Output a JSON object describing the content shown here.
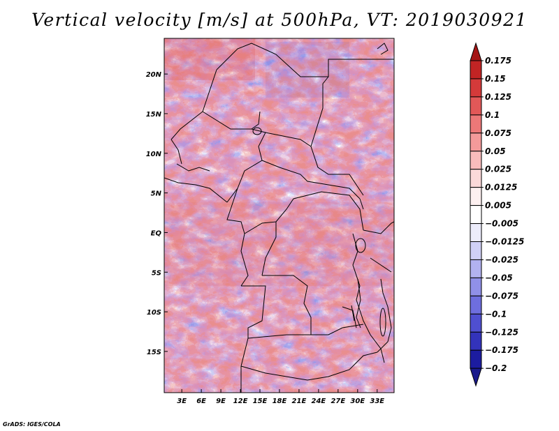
{
  "title": "Vertical velocity [m/s] at 500hPa, VT: 2019030921",
  "credit": "GrADS: IGES/COLA",
  "map": {
    "lat_labels": [
      "20N",
      "15N",
      "10N",
      "5N",
      "EQ",
      "5S",
      "10S",
      "15S"
    ],
    "lat_values": [
      20,
      15,
      10,
      5,
      0,
      -5,
      -10,
      -15
    ],
    "lon_labels": [
      "3E",
      "6E",
      "9E",
      "12E",
      "15E",
      "18E",
      "21E",
      "24E",
      "27E",
      "30E",
      "33E"
    ],
    "lon_values": [
      3,
      6,
      9,
      12,
      15,
      18,
      21,
      24,
      27,
      30,
      33
    ],
    "lon_range": [
      0.3,
      35.6
    ],
    "lat_range": [
      -20.2,
      24.5
    ]
  },
  "colorbar": {
    "labels": [
      "0.175",
      "0.15",
      "0.125",
      "0.1",
      "0.075",
      "0.05",
      "0.025",
      "0.0125",
      "0.005",
      "−0.005",
      "−0.0125",
      "−0.025",
      "−0.05",
      "−0.075",
      "−0.1",
      "−0.125",
      "−0.175",
      "−0.2"
    ],
    "colors": [
      "#a51515",
      "#c12424",
      "#d43a3a",
      "#e25858",
      "#ec7878",
      "#f39a9a",
      "#f8bcbc",
      "#fbd9d9",
      "#fdf0f0",
      "#ffffff",
      "#ececfb",
      "#d0d0f6",
      "#b2b2f0",
      "#9090e8",
      "#6e6ede",
      "#4f4fd0",
      "#3333bb",
      "#1c1ca0",
      "#1a1a8c"
    ]
  }
}
